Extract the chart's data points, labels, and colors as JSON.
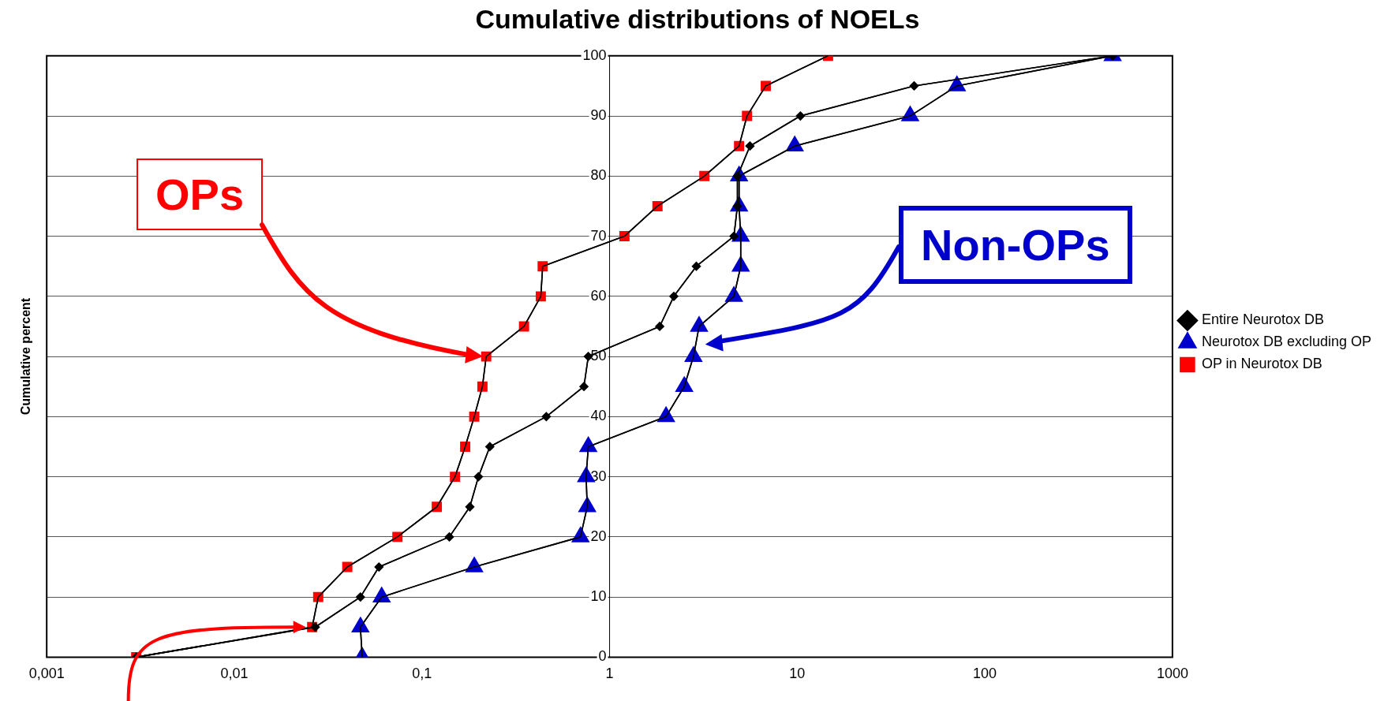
{
  "chart_data": {
    "type": "line",
    "title": "Cumulative distributions of NOELs",
    "ylabel": "Cumulative percent",
    "log": "x",
    "xlim": [
      0.001,
      1000
    ],
    "xticks": [
      {
        "value": 0.001,
        "label": "0,001"
      },
      {
        "value": 0.01,
        "label": "0,01"
      },
      {
        "value": 0.1,
        "label": "0,1"
      },
      1,
      10,
      100,
      1000
    ],
    "ylim": [
      0,
      100
    ],
    "yticks": [
      0,
      10,
      20,
      30,
      40,
      50,
      60,
      70,
      80,
      90,
      100
    ],
    "grid": "y",
    "legend": "right",
    "series": [
      {
        "name": "Entire Neurotox DB",
        "color": "#000000",
        "marker": "diamond",
        "x": [
          0.003,
          0.027,
          0.047,
          0.059,
          0.14,
          0.18,
          0.2,
          0.23,
          0.46,
          0.73,
          0.77,
          1.85,
          2.2,
          2.9,
          4.6,
          4.8,
          4.8,
          5.6,
          10.4,
          42,
          480
        ],
        "values": [
          0,
          5,
          10,
          15,
          20,
          25,
          30,
          35,
          40,
          45,
          50,
          55,
          60,
          65,
          70,
          75,
          80,
          85,
          90,
          95,
          100
        ]
      },
      {
        "name": "Neurotox DB excluding OP",
        "color": "#0000cc",
        "marker": "triangle",
        "x": [
          0.048,
          0.047,
          0.061,
          0.19,
          0.7,
          0.76,
          0.75,
          0.77,
          2,
          2.5,
          2.8,
          3,
          4.6,
          5,
          5,
          4.9,
          4.9,
          9.7,
          40,
          71,
          480
        ],
        "values": [
          0,
          5,
          10,
          15,
          20,
          25,
          30,
          35,
          40,
          45,
          50,
          55,
          60,
          65,
          70,
          75,
          80,
          85,
          90,
          95,
          100
        ]
      },
      {
        "name": "OP in Neurotox DB",
        "color": "#ff0000",
        "marker": "square",
        "x": [
          0.003,
          0.026,
          0.028,
          0.04,
          0.074,
          0.12,
          0.15,
          0.17,
          0.19,
          0.21,
          0.22,
          0.35,
          0.43,
          0.44,
          1.2,
          1.8,
          3.2,
          4.9,
          5.4,
          6.8,
          14.6
        ],
        "values": [
          0,
          5,
          10,
          15,
          20,
          25,
          30,
          35,
          40,
          45,
          50,
          55,
          60,
          65,
          70,
          75,
          80,
          85,
          90,
          95,
          100
        ]
      }
    ],
    "annotations": [
      "OPs",
      "Non-OPs"
    ]
  }
}
